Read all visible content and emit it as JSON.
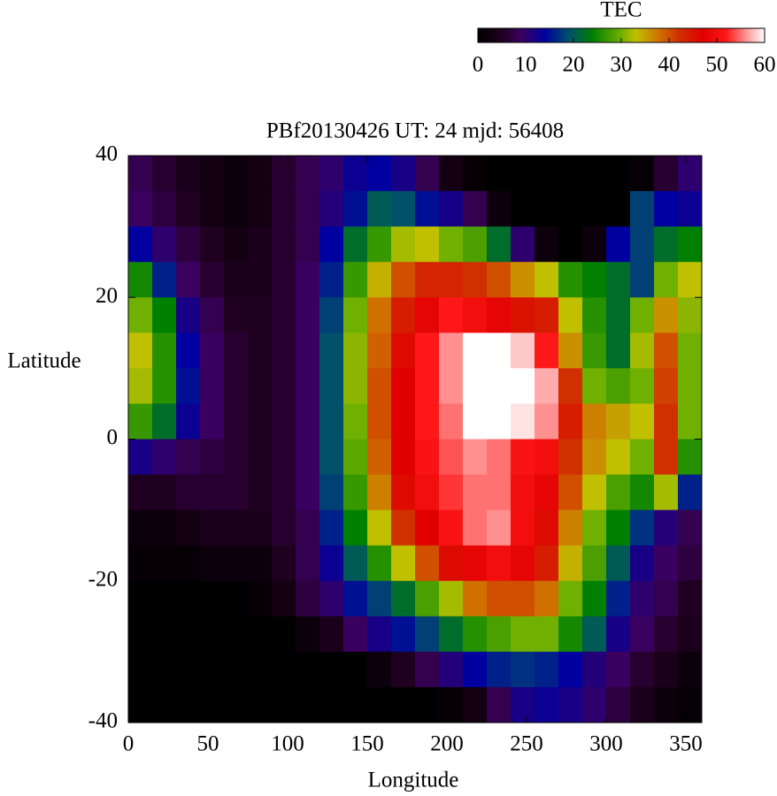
{
  "chart_data": {
    "type": "heatmap",
    "title": "PBf20130426  UT: 24  mjd: 56408",
    "x_label": "Longitude",
    "y_label": "Latitude",
    "colorbar_label": "TEC",
    "xlim": [
      0,
      360
    ],
    "ylim": [
      -40,
      40
    ],
    "xticks": [
      0,
      50,
      100,
      150,
      200,
      250,
      300,
      350
    ],
    "yticks": [
      -40,
      -20,
      0,
      20,
      40
    ],
    "clim": [
      0,
      60
    ],
    "cticks": [
      0,
      10,
      20,
      30,
      40,
      50,
      60
    ],
    "colorscale": [
      [
        0,
        "#000000"
      ],
      [
        5,
        "#200020"
      ],
      [
        9,
        "#3a0060"
      ],
      [
        14,
        "#0000a0"
      ],
      [
        19,
        "#00506a"
      ],
      [
        24,
        "#008000"
      ],
      [
        30,
        "#70b000"
      ],
      [
        33,
        "#c0c000"
      ],
      [
        38,
        "#d07000"
      ],
      [
        42,
        "#d03000"
      ],
      [
        47,
        "#e00000"
      ],
      [
        52,
        "#ff1818"
      ],
      [
        56,
        "#ff9090"
      ],
      [
        60,
        "#ffffff"
      ]
    ],
    "x": [
      7.5,
      22.5,
      37.5,
      52.5,
      67.5,
      82.5,
      97.5,
      112.5,
      127.5,
      142.5,
      157.5,
      172.5,
      187.5,
      202.5,
      217.5,
      232.5,
      247.5,
      262.5,
      277.5,
      292.5,
      307.5,
      322.5,
      337.5,
      352.5
    ],
    "y": [
      37.5,
      32.5,
      27.5,
      22.5,
      17.5,
      12.5,
      7.5,
      2.5,
      -2.5,
      -7.5,
      -12.5,
      -17.5,
      -22.5,
      -27.5,
      -32.5,
      -37.5
    ],
    "z": [
      [
        8,
        6,
        4,
        3,
        2,
        3,
        6,
        8,
        10,
        13,
        14,
        12,
        8,
        3,
        1,
        0,
        0,
        0,
        0,
        0,
        0,
        1,
        6,
        10
      ],
      [
        9,
        7,
        5,
        3,
        2,
        3,
        6,
        8,
        11,
        15,
        20,
        19,
        15,
        12,
        8,
        2,
        0,
        0,
        0,
        0,
        0,
        18,
        14,
        13
      ],
      [
        14,
        10,
        7,
        5,
        3,
        4,
        6,
        8,
        14,
        22,
        27,
        32,
        33,
        30,
        28,
        22,
        10,
        2,
        0,
        2,
        14,
        18,
        22,
        24
      ],
      [
        25,
        16,
        9,
        6,
        4,
        4,
        6,
        9,
        16,
        27,
        34,
        40,
        43,
        43,
        42,
        40,
        36,
        33,
        26,
        24,
        22,
        18,
        30,
        33
      ],
      [
        30,
        24,
        12,
        8,
        5,
        5,
        6,
        9,
        18,
        30,
        38,
        44,
        48,
        52,
        50,
        48,
        45,
        44,
        33,
        26,
        22,
        30,
        36,
        31
      ],
      [
        33,
        26,
        14,
        9,
        6,
        5,
        6,
        9,
        19,
        31,
        39,
        46,
        52,
        56,
        60,
        60,
        58,
        52,
        36,
        27,
        22,
        32,
        40,
        30
      ],
      [
        32,
        26,
        15,
        9,
        6,
        5,
        6,
        9,
        19,
        31,
        40,
        47,
        52,
        56,
        60,
        60,
        60,
        57,
        42,
        30,
        28,
        30,
        41,
        30
      ],
      [
        27,
        22,
        13,
        9,
        6,
        5,
        6,
        9,
        19,
        30,
        40,
        47,
        52,
        55,
        60,
        60,
        59,
        56,
        44,
        37,
        35,
        33,
        42,
        30
      ],
      [
        12,
        10,
        8,
        7,
        6,
        5,
        6,
        9,
        19,
        29,
        39,
        47,
        51,
        54,
        56,
        55,
        51,
        50,
        42,
        36,
        33,
        30,
        42,
        26
      ],
      [
        5,
        5,
        6,
        6,
        6,
        5,
        6,
        9,
        18,
        27,
        37,
        46,
        50,
        53,
        55,
        55,
        50,
        48,
        40,
        33,
        28,
        25,
        32,
        16
      ],
      [
        2,
        2,
        3,
        4,
        4,
        4,
        6,
        8,
        16,
        24,
        33,
        42,
        47,
        51,
        55,
        56,
        50,
        46,
        37,
        30,
        24,
        17,
        11,
        8
      ],
      [
        1,
        1,
        1,
        2,
        2,
        2,
        5,
        8,
        13,
        20,
        26,
        33,
        40,
        46,
        48,
        50,
        48,
        44,
        34,
        28,
        20,
        12,
        9,
        7
      ],
      [
        0,
        0,
        0,
        0,
        0,
        1,
        3,
        7,
        10,
        15,
        18,
        22,
        28,
        32,
        38,
        40,
        40,
        38,
        30,
        24,
        16,
        10,
        8,
        5
      ],
      [
        0,
        0,
        0,
        0,
        0,
        0,
        0,
        2,
        4,
        9,
        12,
        15,
        18,
        22,
        26,
        28,
        30,
        30,
        25,
        20,
        12,
        9,
        6,
        4
      ],
      [
        0,
        0,
        0,
        0,
        0,
        0,
        0,
        0,
        0,
        0,
        2,
        5,
        8,
        11,
        14,
        16,
        17,
        16,
        14,
        11,
        9,
        6,
        4,
        2
      ],
      [
        0,
        0,
        0,
        0,
        0,
        0,
        0,
        0,
        0,
        0,
        0,
        0,
        0,
        1,
        3,
        8,
        12,
        13,
        12,
        10,
        7,
        4,
        2,
        1
      ]
    ]
  }
}
